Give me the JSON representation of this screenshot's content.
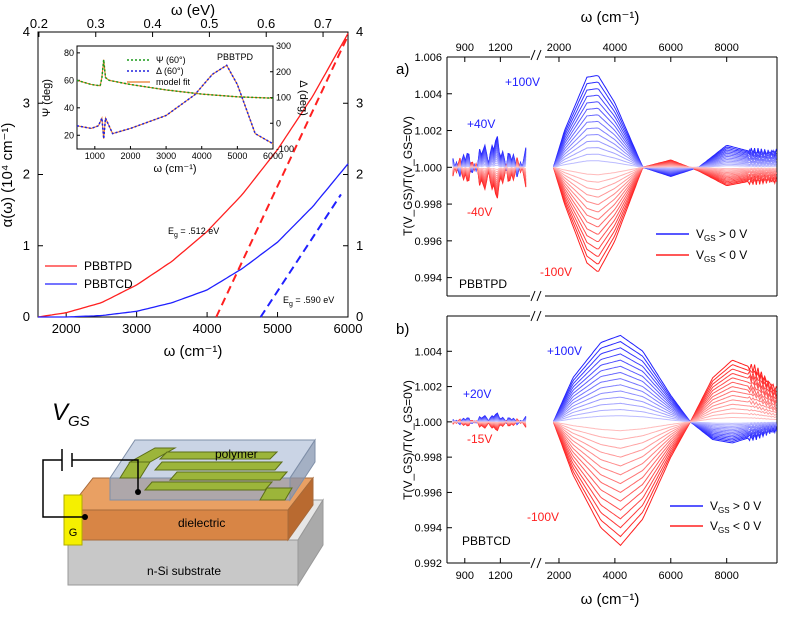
{
  "colors": {
    "red": "#ff2020",
    "blue": "#2020ff",
    "green": "#1a9a1a",
    "bluedot": "#2222dd",
    "orange_fit": "#e87a2a"
  },
  "chart_data": [
    {
      "type": "line",
      "panel": "absorption",
      "xlabel": "ω (cm⁻¹)",
      "ylabel": "α(ω) (10⁴ cm⁻¹)",
      "top_xlabel": "ω (eV)",
      "xlim": [
        1600,
        6000
      ],
      "ylim": [
        0,
        4
      ],
      "xticks": [
        "2000",
        "3000",
        "4000",
        "5000",
        "6000"
      ],
      "yticks": [
        "0",
        "1",
        "2",
        "3",
        "4"
      ],
      "top_xticks": [
        "0.2",
        "0.3",
        "0.4",
        "0.5",
        "0.6",
        "0.7"
      ],
      "right_yticks": [
        "0",
        "1",
        "2",
        "3",
        "4"
      ],
      "series": [
        {
          "name": "PBBTPD",
          "color": "#ff2020",
          "x": [
            1600,
            2000,
            2500,
            3000,
            3500,
            4000,
            4500,
            5000,
            5500,
            6000
          ],
          "y": [
            0.0,
            0.06,
            0.2,
            0.45,
            0.78,
            1.2,
            1.72,
            2.35,
            3.1,
            3.98
          ]
        },
        {
          "name": "PBBTCD",
          "color": "#2020ff",
          "x": [
            1600,
            2000,
            2500,
            3000,
            3500,
            4000,
            4500,
            5000,
            5500,
            6000
          ],
          "y": [
            0.0,
            0.0,
            0.02,
            0.08,
            0.2,
            0.38,
            0.68,
            1.05,
            1.55,
            2.15
          ]
        }
      ],
      "fits": [
        {
          "color": "#ff2020",
          "x": [
            4130,
            6000
          ],
          "y": [
            0.0,
            3.95
          ]
        },
        {
          "color": "#2020ff",
          "x": [
            4760,
            5900
          ],
          "y": [
            0.0,
            1.72
          ]
        }
      ],
      "annotations": {
        "eg1": "E",
        "eg1_sub": "g",
        "eg1_val": " = .512 eV",
        "eg2": "E",
        "eg2_sub": "g",
        "eg2_val": " = .590 eV"
      }
    },
    {
      "type": "line",
      "panel": "inset-ellipsometry",
      "xlabel": "ω (cm⁻¹)",
      "ylabel_left": "Ψ (deg)",
      "ylabel_right": "Δ (deg)",
      "title": "PBBTPD",
      "xlim": [
        500,
        6000
      ],
      "ylim_left": [
        10,
        85
      ],
      "ylim_right": [
        -100,
        300
      ],
      "xticks": [
        "1000",
        "2000",
        "3000",
        "4000",
        "5000",
        "6000"
      ],
      "yticks_left": [
        "20",
        "40",
        "60",
        "80"
      ],
      "yticks_right": [
        "-100",
        "0",
        "100",
        "200",
        "300"
      ],
      "legend": [
        "Ψ (60°)",
        "Δ (60°)",
        "model fit"
      ],
      "series": [
        {
          "name": "Ψ (60°)",
          "axis": "left",
          "x": [
            500,
            900,
            1150,
            1200,
            1250,
            1300,
            1400,
            2000,
            3000,
            4000,
            5000,
            6000
          ],
          "y": [
            60,
            57,
            56,
            62,
            75,
            62,
            60,
            57,
            53,
            50,
            48,
            47
          ]
        },
        {
          "name": "Δ (60°)",
          "axis": "right",
          "x": [
            500,
            900,
            1100,
            1200,
            1250,
            1300,
            1500,
            2000,
            3000,
            3800,
            4300,
            4700,
            5000,
            5500,
            6000
          ],
          "y": [
            -10,
            -20,
            -10,
            20,
            -60,
            20,
            -40,
            -20,
            30,
            110,
            190,
            225,
            150,
            -40,
            -80
          ]
        }
      ]
    },
    {
      "type": "line",
      "panel": "a",
      "label": "a)",
      "xlabel": "ω (cm⁻¹)",
      "ylabel": "T(V_GS)/T(V_GS=0V)",
      "ylim": [
        0.993,
        1.006
      ],
      "yticks": [
        "0.994",
        "0.996",
        "0.998",
        "1.000",
        "1.002",
        "1.004",
        "1.006"
      ],
      "top_xticks_left": [
        "900",
        "1200"
      ],
      "top_xticks_right": [
        "2000",
        "4000",
        "6000",
        "8000"
      ],
      "legend": [
        {
          "text": "V",
          "sub": "GS",
          "rest": " > 0 V"
        },
        {
          "text": "V",
          "sub": "GS",
          "rest": " < 0 V"
        }
      ],
      "sample": "PBBTPD",
      "annotations": [
        "+100V",
        "+40V",
        "-40V",
        "-100V"
      ],
      "series": [
        {
          "name": "V_GS = +100 V",
          "x": [
            1800,
            2200,
            3000,
            3400,
            4000,
            5000,
            6000,
            7000,
            8000,
            9000
          ],
          "y": [
            1.0,
            1.002,
            1.0049,
            1.005,
            1.0035,
            1.0,
            0.9995,
            1.0,
            1.0012,
            1.0008
          ]
        },
        {
          "name": "V_GS = -100 V",
          "x": [
            1800,
            2200,
            3000,
            3400,
            4000,
            5000,
            6000,
            7000,
            8000,
            9000
          ],
          "y": [
            1.0,
            0.998,
            0.9948,
            0.9943,
            0.996,
            1.0,
            1.0004,
            0.9998,
            0.999,
            0.9993
          ]
        }
      ]
    },
    {
      "type": "line",
      "panel": "b",
      "label": "b)",
      "xlabel": "ω (cm⁻¹)",
      "ylabel": "T(V_GS)/T(V_GS=0V)",
      "ylim": [
        0.992,
        1.006
      ],
      "yticks": [
        "0.992",
        "0.994",
        "0.996",
        "0.998",
        "1.000",
        "1.002",
        "1.004"
      ],
      "xticks_left": [
        "900",
        "1200"
      ],
      "xticks_right": [
        "2000",
        "4000",
        "6000",
        "8000"
      ],
      "legend": [
        {
          "text": "V",
          "sub": "GS",
          "rest": " > 0 V"
        },
        {
          "text": "V",
          "sub": "GS",
          "rest": " < 0 V"
        }
      ],
      "sample": "PBBTCD",
      "annotations": [
        "+100V",
        "+20V",
        "-15V",
        "-100V"
      ],
      "series": [
        {
          "name": "V_GS = +100 V",
          "x": [
            1800,
            2500,
            3500,
            4200,
            5000,
            6000,
            6700,
            7500,
            8200,
            9000,
            9800
          ],
          "y": [
            1.0,
            1.0025,
            1.0045,
            1.0049,
            1.004,
            1.0015,
            1.0,
            0.999,
            0.9988,
            0.9992,
            0.9996
          ]
        },
        {
          "name": "V_GS = -100 V",
          "x": [
            1800,
            2500,
            3500,
            4200,
            5000,
            6000,
            6700,
            7500,
            8200,
            9000,
            9800
          ],
          "y": [
            1.0,
            0.997,
            0.994,
            0.993,
            0.9945,
            0.998,
            1.0,
            1.0025,
            1.0035,
            1.003,
            1.0018
          ]
        }
      ]
    }
  ],
  "device": {
    "voltage_label": "V",
    "voltage_sub": "GS",
    "polymer_label": "polymer",
    "dielectric_label": "dielectric",
    "substrate_label": "n-Si substrate",
    "gate_label": "G"
  }
}
